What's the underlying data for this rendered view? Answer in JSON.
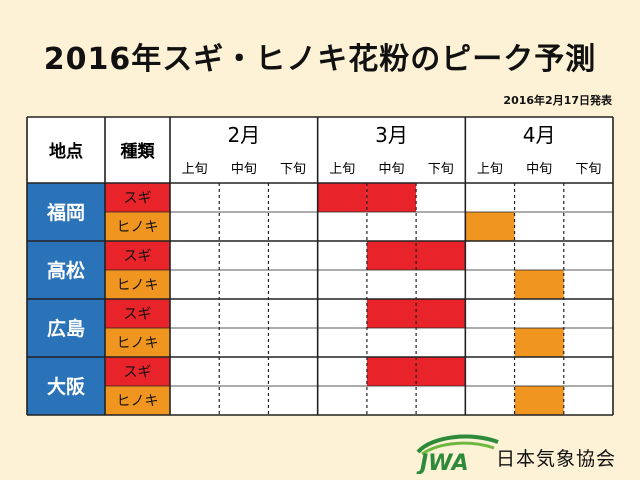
{
  "title": "2016年スギ・ヒノキ花粉のピーク予測",
  "date": "2016年2月17日発表",
  "logo": {
    "mark": "JWA",
    "text": "日本気象協会"
  },
  "colors": {
    "sugi": "#e8232a",
    "hinoki": "#f0951f",
    "city": "#2b73b8",
    "background": "#fdf1d6"
  },
  "chart_data": {
    "type": "table",
    "headers": {
      "location": "地点",
      "kind": "種類"
    },
    "months": [
      "2月",
      "3月",
      "4月"
    ],
    "periods": [
      "上旬",
      "中旬",
      "下旬"
    ],
    "cities": [
      {
        "name": "福岡",
        "rows": [
          {
            "type": "スギ",
            "key": "sugi",
            "peak": [
              [
                3,
                3
              ],
              [
                4,
                4
              ]
            ]
          },
          {
            "type": "ヒノキ",
            "key": "hinoki",
            "peak": [
              [
                6,
                6
              ]
            ]
          }
        ]
      },
      {
        "name": "高松",
        "rows": [
          {
            "type": "スギ",
            "key": "sugi",
            "peak": [
              [
                4,
                5
              ]
            ]
          },
          {
            "type": "ヒノキ",
            "key": "hinoki",
            "peak": [
              [
                7,
                7
              ]
            ]
          }
        ]
      },
      {
        "name": "広島",
        "rows": [
          {
            "type": "スギ",
            "key": "sugi",
            "peak": [
              [
                4,
                5
              ]
            ]
          },
          {
            "type": "ヒノキ",
            "key": "hinoki",
            "peak": [
              [
                7,
                7
              ]
            ]
          }
        ]
      },
      {
        "name": "大阪",
        "rows": [
          {
            "type": "スギ",
            "key": "sugi",
            "peak": [
              [
                4,
                5
              ]
            ]
          },
          {
            "type": "ヒノキ",
            "key": "hinoki",
            "peak": [
              [
                7,
                7
              ]
            ]
          }
        ]
      }
    ]
  }
}
